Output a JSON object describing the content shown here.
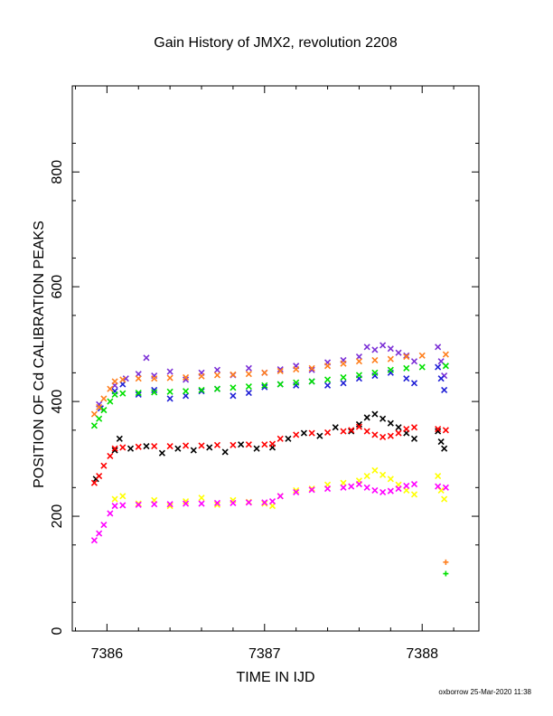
{
  "chart_data": {
    "type": "scatter",
    "title": "Gain History of JMX2, revolution 2208",
    "xlabel": "TIME IN IJD",
    "ylabel": "POSITION OF Cd CALIBRATION PEAKS",
    "xlim": [
      7385.78,
      7388.36
    ],
    "ylim": [
      0,
      950
    ],
    "xticks": [
      7386,
      7387,
      7388
    ],
    "xtick_labels": [
      "7386",
      "7387",
      "7388"
    ],
    "yticks": [
      0,
      200,
      400,
      600,
      800
    ],
    "ytick_labels": [
      "0",
      "200",
      "400",
      "600",
      "800"
    ],
    "grid": false,
    "legend": "none",
    "footer": "oxborrow 25-Mar-2020 11:38",
    "series": [
      {
        "color": "#7b2fd6",
        "marker": "x",
        "points": [
          [
            7385.95,
            395
          ],
          [
            7386.05,
            428
          ],
          [
            7386.12,
            440
          ],
          [
            7386.2,
            448
          ],
          [
            7386.25,
            476
          ],
          [
            7386.3,
            445
          ],
          [
            7386.4,
            452
          ],
          [
            7386.5,
            438
          ],
          [
            7386.6,
            450
          ],
          [
            7386.7,
            455
          ],
          [
            7386.8,
            446
          ],
          [
            7386.9,
            458
          ],
          [
            7387.0,
            450
          ],
          [
            7387.1,
            456
          ],
          [
            7387.2,
            462
          ],
          [
            7387.3,
            455
          ],
          [
            7387.4,
            468
          ],
          [
            7387.5,
            472
          ],
          [
            7387.6,
            478
          ],
          [
            7387.65,
            495
          ],
          [
            7387.7,
            490
          ],
          [
            7387.75,
            498
          ],
          [
            7387.8,
            492
          ],
          [
            7387.85,
            485
          ],
          [
            7387.9,
            480
          ],
          [
            7387.95,
            470
          ],
          [
            7388.1,
            495
          ],
          [
            7388.12,
            470
          ],
          [
            7388.14,
            445
          ]
        ]
      },
      {
        "color": "#1f1fd6",
        "marker": "x",
        "points": [
          [
            7385.96,
            388
          ],
          [
            7386.05,
            418
          ],
          [
            7386.1,
            430
          ],
          [
            7386.2,
            412
          ],
          [
            7386.3,
            420
          ],
          [
            7386.4,
            405
          ],
          [
            7386.5,
            410
          ],
          [
            7386.6,
            418
          ],
          [
            7386.7,
            422
          ],
          [
            7386.8,
            410
          ],
          [
            7386.9,
            415
          ],
          [
            7387.0,
            425
          ],
          [
            7387.1,
            430
          ],
          [
            7387.2,
            428
          ],
          [
            7387.3,
            435
          ],
          [
            7387.4,
            428
          ],
          [
            7387.5,
            432
          ],
          [
            7387.6,
            440
          ],
          [
            7387.7,
            445
          ],
          [
            7387.8,
            450
          ],
          [
            7387.9,
            440
          ],
          [
            7387.95,
            432
          ],
          [
            7388.1,
            460
          ],
          [
            7388.12,
            440
          ],
          [
            7388.14,
            420
          ]
        ]
      },
      {
        "color": "#000000",
        "marker": "x",
        "points": [
          [
            7385.93,
            265
          ],
          [
            7386.05,
            315
          ],
          [
            7386.08,
            335
          ],
          [
            7386.15,
            318
          ],
          [
            7386.25,
            322
          ],
          [
            7386.35,
            310
          ],
          [
            7386.45,
            318
          ],
          [
            7386.55,
            315
          ],
          [
            7386.65,
            320
          ],
          [
            7386.75,
            312
          ],
          [
            7386.85,
            325
          ],
          [
            7386.95,
            318
          ],
          [
            7387.05,
            320
          ],
          [
            7387.15,
            335
          ],
          [
            7387.25,
            345
          ],
          [
            7387.35,
            340
          ],
          [
            7387.45,
            355
          ],
          [
            7387.55,
            348
          ],
          [
            7387.6,
            360
          ],
          [
            7387.65,
            372
          ],
          [
            7387.7,
            378
          ],
          [
            7387.75,
            370
          ],
          [
            7387.8,
            362
          ],
          [
            7387.85,
            355
          ],
          [
            7387.9,
            345
          ],
          [
            7387.95,
            335
          ],
          [
            7388.1,
            348
          ],
          [
            7388.12,
            330
          ],
          [
            7388.14,
            318
          ]
        ]
      },
      {
        "color": "#ffff00",
        "marker": "x",
        "points": [
          [
            7386.05,
            230
          ],
          [
            7386.1,
            235
          ],
          [
            7386.2,
            222
          ],
          [
            7386.3,
            228
          ],
          [
            7386.4,
            218
          ],
          [
            7386.5,
            226
          ],
          [
            7386.6,
            232
          ],
          [
            7386.7,
            220
          ],
          [
            7386.8,
            228
          ],
          [
            7386.9,
            225
          ],
          [
            7387.0,
            222
          ],
          [
            7387.05,
            218
          ],
          [
            7387.1,
            235
          ],
          [
            7387.2,
            245
          ],
          [
            7387.3,
            248
          ],
          [
            7387.4,
            255
          ],
          [
            7387.5,
            258
          ],
          [
            7387.6,
            262
          ],
          [
            7387.65,
            270
          ],
          [
            7387.7,
            280
          ],
          [
            7387.75,
            272
          ],
          [
            7387.8,
            265
          ],
          [
            7387.85,
            255
          ],
          [
            7387.9,
            245
          ],
          [
            7387.95,
            238
          ],
          [
            7388.1,
            270
          ],
          [
            7388.12,
            245
          ],
          [
            7388.14,
            230
          ]
        ]
      },
      {
        "color": "#ff7f1e",
        "marker": "x",
        "points": [
          [
            7385.92,
            378
          ],
          [
            7385.95,
            390
          ],
          [
            7385.98,
            405
          ],
          [
            7386.02,
            422
          ],
          [
            7386.05,
            435
          ],
          [
            7386.1,
            438
          ],
          [
            7386.2,
            440
          ],
          [
            7386.3,
            440
          ],
          [
            7386.4,
            441
          ],
          [
            7386.5,
            442
          ],
          [
            7386.6,
            444
          ],
          [
            7386.7,
            446
          ],
          [
            7386.8,
            447
          ],
          [
            7386.9,
            448
          ],
          [
            7387.0,
            450
          ],
          [
            7387.1,
            453
          ],
          [
            7387.2,
            456
          ],
          [
            7387.3,
            458
          ],
          [
            7387.4,
            462
          ],
          [
            7387.5,
            466
          ],
          [
            7387.6,
            470
          ],
          [
            7387.7,
            472
          ],
          [
            7387.8,
            474
          ],
          [
            7387.9,
            478
          ],
          [
            7388.0,
            480
          ],
          [
            7388.15,
            482
          ]
        ]
      },
      {
        "color": "#00e000",
        "marker": "x",
        "points": [
          [
            7385.92,
            358
          ],
          [
            7385.95,
            370
          ],
          [
            7385.98,
            385
          ],
          [
            7386.02,
            400
          ],
          [
            7386.05,
            412
          ],
          [
            7386.1,
            414
          ],
          [
            7386.2,
            415
          ],
          [
            7386.3,
            416
          ],
          [
            7386.4,
            417
          ],
          [
            7386.5,
            418
          ],
          [
            7386.6,
            420
          ],
          [
            7386.7,
            422
          ],
          [
            7386.8,
            424
          ],
          [
            7386.9,
            426
          ],
          [
            7387.0,
            428
          ],
          [
            7387.1,
            430
          ],
          [
            7387.2,
            433
          ],
          [
            7387.3,
            435
          ],
          [
            7387.4,
            438
          ],
          [
            7387.5,
            442
          ],
          [
            7387.6,
            446
          ],
          [
            7387.7,
            450
          ],
          [
            7387.8,
            455
          ],
          [
            7387.9,
            458
          ],
          [
            7388.0,
            460
          ],
          [
            7388.15,
            462
          ]
        ]
      },
      {
        "color": "#ff0000",
        "marker": "x",
        "points": [
          [
            7385.92,
            258
          ],
          [
            7385.95,
            270
          ],
          [
            7385.98,
            288
          ],
          [
            7386.02,
            305
          ],
          [
            7386.05,
            318
          ],
          [
            7386.1,
            320
          ],
          [
            7386.2,
            321
          ],
          [
            7386.3,
            322
          ],
          [
            7386.4,
            322
          ],
          [
            7386.5,
            323
          ],
          [
            7386.6,
            323
          ],
          [
            7386.7,
            324
          ],
          [
            7386.8,
            324
          ],
          [
            7386.9,
            325
          ],
          [
            7387.0,
            325
          ],
          [
            7387.05,
            326
          ],
          [
            7387.1,
            335
          ],
          [
            7387.2,
            342
          ],
          [
            7387.3,
            345
          ],
          [
            7387.4,
            346
          ],
          [
            7387.5,
            348
          ],
          [
            7387.55,
            350
          ],
          [
            7387.6,
            356
          ],
          [
            7387.65,
            348
          ],
          [
            7387.7,
            342
          ],
          [
            7387.75,
            338
          ],
          [
            7387.8,
            340
          ],
          [
            7387.85,
            345
          ],
          [
            7387.9,
            352
          ],
          [
            7387.95,
            355
          ],
          [
            7388.1,
            352
          ],
          [
            7388.15,
            350
          ]
        ]
      },
      {
        "color": "#ff00ff",
        "marker": "x",
        "points": [
          [
            7385.92,
            158
          ],
          [
            7385.95,
            170
          ],
          [
            7385.98,
            185
          ],
          [
            7386.02,
            205
          ],
          [
            7386.05,
            218
          ],
          [
            7386.1,
            219
          ],
          [
            7386.2,
            220
          ],
          [
            7386.3,
            221
          ],
          [
            7386.4,
            221
          ],
          [
            7386.5,
            222
          ],
          [
            7386.6,
            222
          ],
          [
            7386.7,
            223
          ],
          [
            7386.8,
            223
          ],
          [
            7386.9,
            224
          ],
          [
            7387.0,
            224
          ],
          [
            7387.05,
            226
          ],
          [
            7387.1,
            235
          ],
          [
            7387.2,
            242
          ],
          [
            7387.3,
            246
          ],
          [
            7387.4,
            248
          ],
          [
            7387.5,
            250
          ],
          [
            7387.55,
            252
          ],
          [
            7387.6,
            256
          ],
          [
            7387.65,
            250
          ],
          [
            7387.7,
            245
          ],
          [
            7387.75,
            242
          ],
          [
            7387.8,
            244
          ],
          [
            7387.85,
            248
          ],
          [
            7387.9,
            253
          ],
          [
            7387.95,
            256
          ],
          [
            7388.1,
            252
          ],
          [
            7388.15,
            250
          ]
        ]
      },
      {
        "color": "#ff7f1e",
        "marker": "+",
        "points": [
          [
            7388.15,
            120
          ]
        ]
      },
      {
        "color": "#00e000",
        "marker": "+",
        "points": [
          [
            7388.15,
            100
          ]
        ]
      }
    ]
  }
}
